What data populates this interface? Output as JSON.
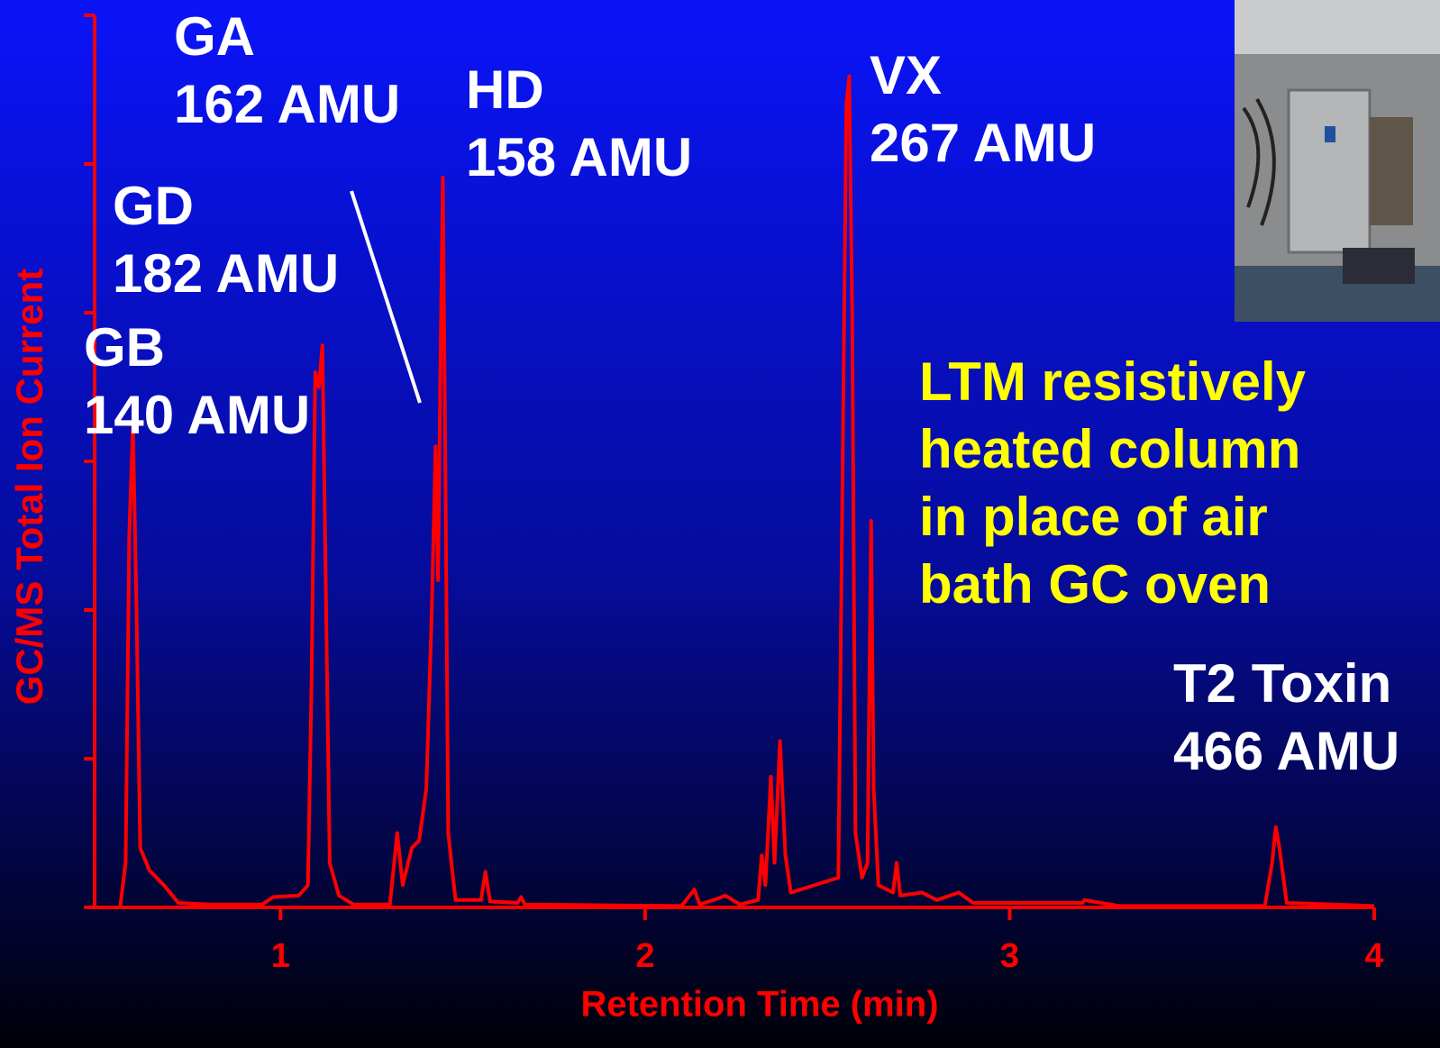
{
  "chart_data": {
    "type": "line",
    "xlabel": "Retention Time (min)",
    "ylabel": "GC/MS Total Ion Current",
    "color": "#ff0000",
    "xlim": [
      0.49,
      4
    ],
    "xticks": [
      1,
      2,
      3,
      4
    ],
    "ylim": [
      0,
      6
    ],
    "yticks": [
      0,
      1,
      2,
      3,
      4,
      5,
      6
    ],
    "x": [
      0.49,
      0.56,
      0.575,
      0.585,
      0.595,
      0.605,
      0.615,
      0.64,
      0.68,
      0.72,
      0.8,
      0.95,
      0.98,
      1.05,
      1.075,
      1.085,
      1.095,
      1.105,
      1.115,
      1.125,
      1.135,
      1.16,
      1.2,
      1.3,
      1.32,
      1.335,
      1.36,
      1.38,
      1.4,
      1.415,
      1.425,
      1.432,
      1.438,
      1.445,
      1.452,
      1.46,
      1.48,
      1.55,
      1.562,
      1.575,
      1.65,
      1.66,
      1.67,
      2.1,
      2.135,
      2.15,
      2.2,
      2.22,
      2.26,
      2.31,
      2.32,
      2.33,
      2.345,
      2.355,
      2.37,
      2.385,
      2.4,
      2.53,
      2.54,
      2.552,
      2.56,
      2.568,
      2.577,
      2.595,
      2.61,
      2.62,
      2.627,
      2.64,
      2.68,
      2.69,
      2.7,
      2.76,
      2.8,
      2.86,
      2.9,
      3.2,
      3.205,
      3.3,
      3.7,
      3.72,
      3.73,
      3.74,
      3.76,
      4.0
    ],
    "values": [
      0,
      0,
      0.3,
      2.5,
      3.25,
      2.0,
      0.4,
      0.25,
      0.15,
      0.03,
      0.02,
      0.02,
      0.07,
      0.08,
      0.15,
      1.5,
      3.6,
      3.5,
      3.78,
      2.0,
      0.3,
      0.08,
      0.02,
      0.02,
      0.5,
      0.15,
      0.4,
      0.45,
      0.8,
      2.0,
      3.1,
      2.2,
      3.5,
      4.91,
      3.0,
      0.5,
      0.05,
      0.05,
      0.24,
      0.04,
      0.03,
      0.07,
      0.02,
      0.01,
      0.12,
      0.02,
      0.06,
      0.08,
      0.02,
      0.05,
      0.35,
      0.15,
      0.88,
      0.3,
      1.12,
      0.35,
      0.1,
      0.2,
      2.5,
      5.4,
      5.59,
      4.0,
      0.5,
      0.2,
      0.3,
      2.6,
      0.8,
      0.15,
      0.1,
      0.3,
      0.08,
      0.1,
      0.05,
      0.1,
      0.03,
      0.03,
      0.05,
      0.01,
      0.01,
      0.3,
      0.54,
      0.4,
      0.03,
      0.01
    ],
    "annotations": [
      {
        "lines": [
          "GA",
          "162 AMU"
        ],
        "color": "#ffffff"
      },
      {
        "lines": [
          "HD",
          "158 AMU"
        ],
        "color": "#ffffff"
      },
      {
        "lines": [
          "GD",
          "182 AMU"
        ],
        "color": "#ffffff"
      },
      {
        "lines": [
          "GB",
          "140 AMU"
        ],
        "color": "#ffffff"
      },
      {
        "lines": [
          "VX",
          "267 AMU"
        ],
        "color": "#ffffff"
      },
      {
        "lines": [
          "T2 Toxin",
          "466 AMU"
        ],
        "color": "#ffffff"
      },
      {
        "lines": [
          "LTM resistively",
          "heated column",
          "in place of air",
          "bath GC oven"
        ],
        "color": "#ffff00"
      }
    ]
  }
}
